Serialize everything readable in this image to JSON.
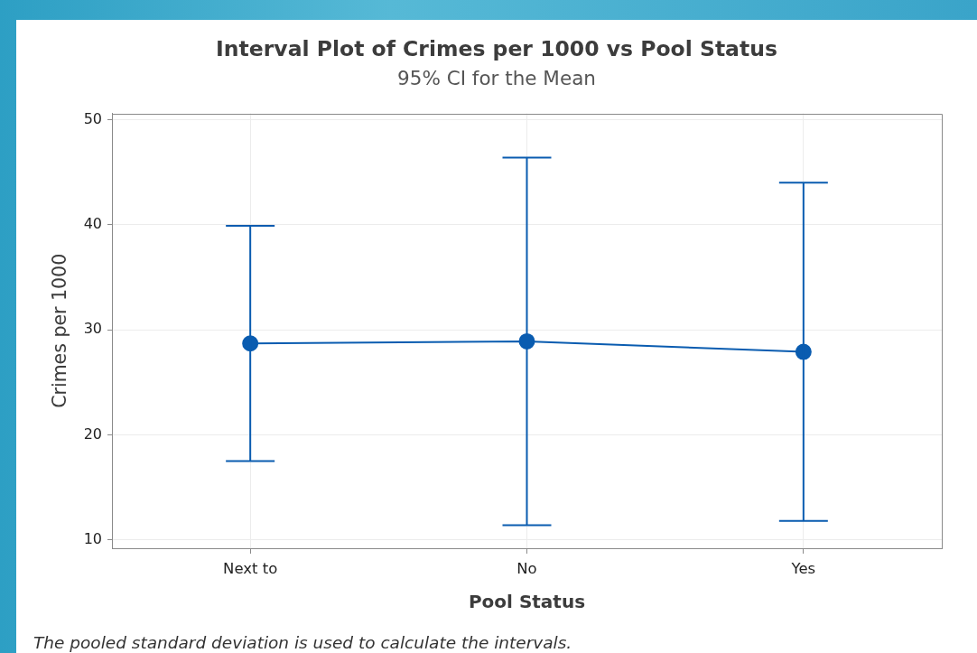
{
  "chart_data": {
    "type": "line",
    "title": "Interval Plot of Crimes per 1000 vs Pool Status",
    "subtitle": "95% CI for the Mean",
    "xlabel": "Pool Status",
    "ylabel": "Crimes per 1000",
    "annotations": [
      "The pooled standard deviation is used to calculate the intervals."
    ],
    "categories": [
      "Next to",
      "No",
      "Yes"
    ],
    "values": [
      28.7,
      28.9,
      27.9
    ],
    "errors": [
      11.2,
      17.5,
      16.1
    ],
    "color": "#0a5cb0",
    "ylim": [
      9.2,
      50.6
    ],
    "yticks": [
      10,
      20,
      30,
      40,
      50
    ],
    "grid": true,
    "marker": "circle",
    "line_style": "solid"
  }
}
